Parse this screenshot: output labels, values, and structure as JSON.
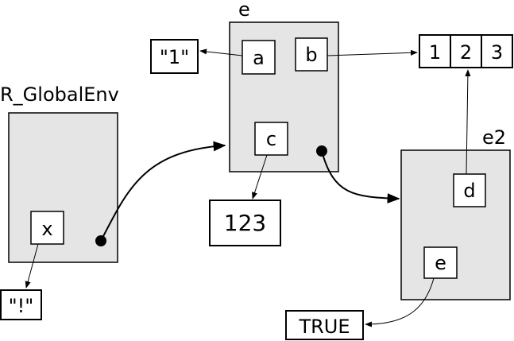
{
  "environments": {
    "global": {
      "label": "R_GlobalEnv"
    },
    "e": {
      "label": "e"
    },
    "e2": {
      "label": "e2"
    }
  },
  "bindings": {
    "x": "x",
    "a": "a",
    "b": "b",
    "c": "c",
    "d": "d",
    "e": "e"
  },
  "values": {
    "bang_string": "\"!\"",
    "one_string": "\"1\"",
    "vector": [
      "1",
      "2",
      "3"
    ],
    "number": "123",
    "logical": "TRUE"
  }
}
